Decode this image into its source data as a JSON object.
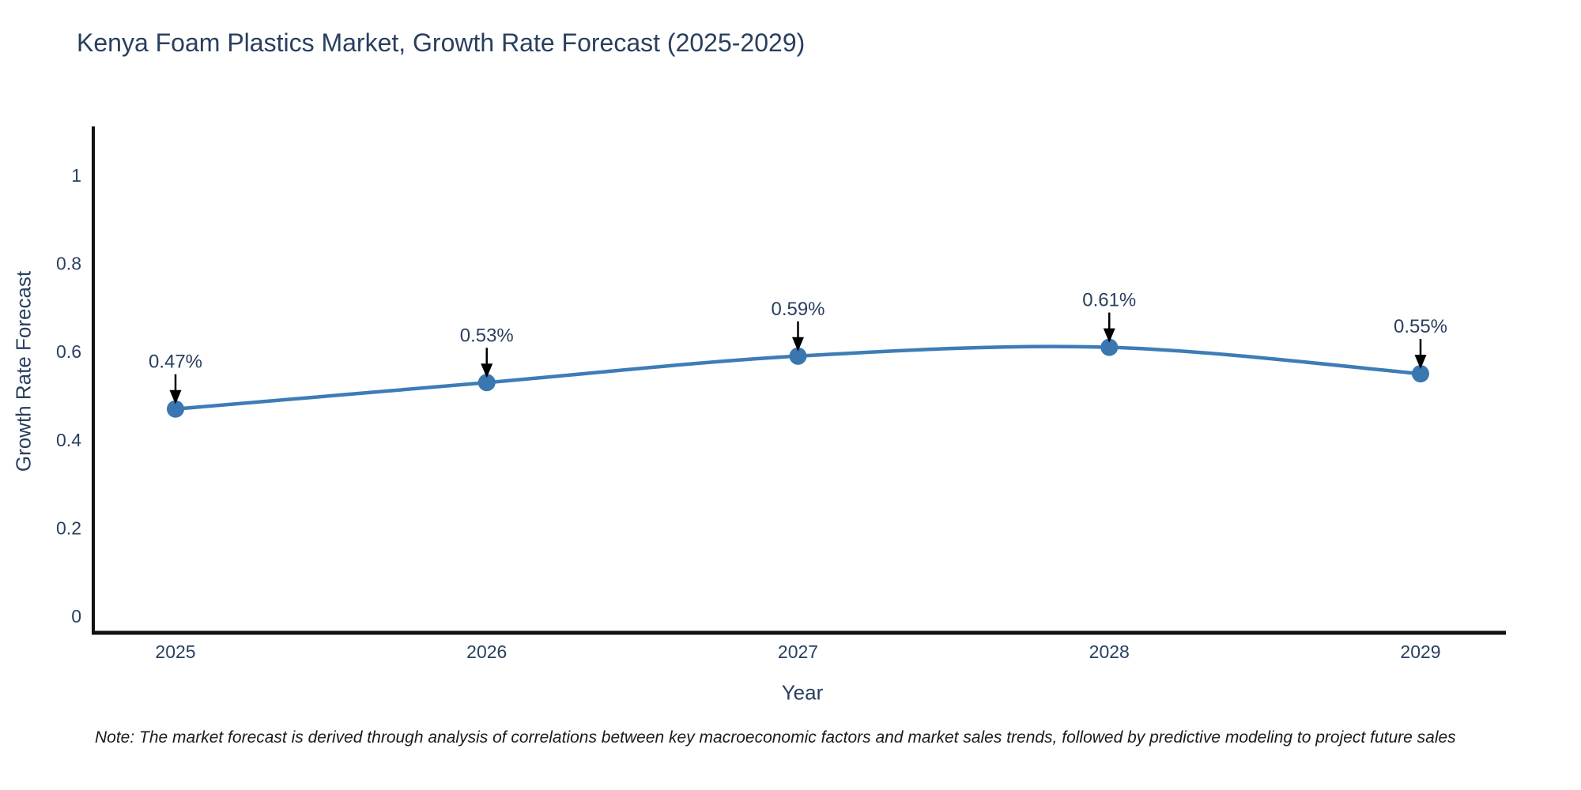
{
  "title": "Kenya Foam Plastics Market, Growth Rate Forecast (2025-2029)",
  "note": "Note: The market forecast is derived through analysis of correlations between key macroeconomic factors and market sales trends, followed by predictive modeling to project future sales",
  "chart_data": {
    "type": "line",
    "title": "Kenya Foam Plastics Market, Growth Rate Forecast (2025-2029)",
    "xlabel": "Year",
    "ylabel": "Growth Rate Forecast",
    "categories": [
      "2025",
      "2026",
      "2027",
      "2028",
      "2029"
    ],
    "series": [
      {
        "name": "Growth Rate Forecast",
        "values": [
          0.47,
          0.53,
          0.59,
          0.61,
          0.55
        ],
        "point_labels": [
          "0.47%",
          "0.53%",
          "0.59%",
          "0.61%",
          "0.55%"
        ]
      }
    ],
    "ylim": [
      0,
      1.1
    ],
    "ytick_labels": [
      "0",
      "0.2",
      "0.4",
      "0.6",
      "0.8",
      "1"
    ],
    "ytick_values": [
      0,
      0.2,
      0.4,
      0.6,
      0.8,
      1
    ],
    "grid": false,
    "legend_position": "none",
    "line_shape": "spline",
    "annotations_have_arrows": true,
    "colors": {
      "line": "#3E7CB7",
      "marker": "#3A76B0",
      "axis": "#111111",
      "text": "#2A3F5F",
      "arrow": "#000000",
      "background": "#FFFFFF"
    }
  }
}
